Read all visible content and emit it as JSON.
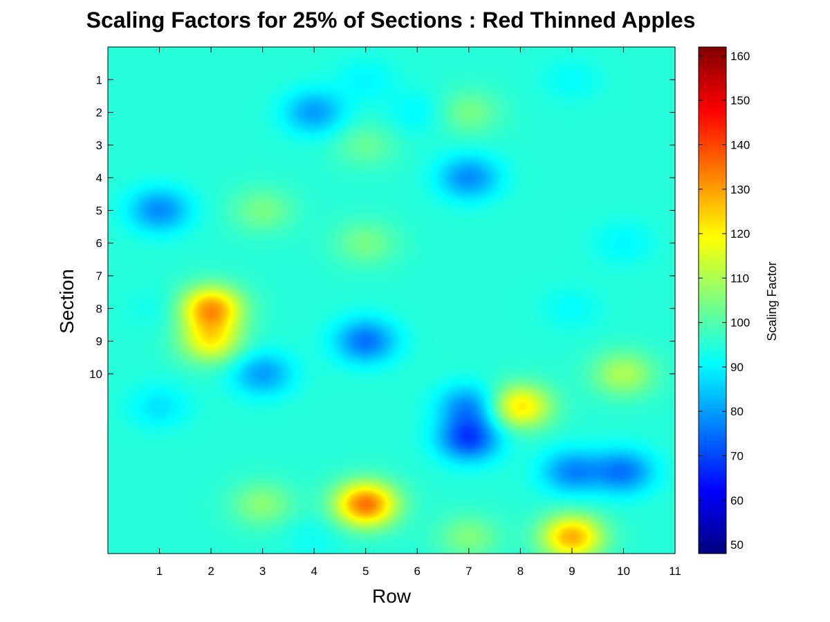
{
  "chart_data": {
    "type": "heatmap",
    "title": "Scaling Factors for 25% of Sections : Red Thinned Apples",
    "xlabel": "Row",
    "ylabel": "Section",
    "colorbar_label": "Scaling Factor",
    "colormap": "jet",
    "xlim": [
      0,
      11
    ],
    "ylim": [
      0,
      15.5
    ],
    "y_reversed": true,
    "x_ticks": [
      1,
      2,
      3,
      4,
      5,
      6,
      7,
      8,
      9,
      10,
      11
    ],
    "y_ticks": [
      1,
      2,
      3,
      4,
      5,
      6,
      7,
      8,
      9,
      10
    ],
    "color_range": [
      48,
      162
    ],
    "colorbar_ticks": [
      50,
      60,
      70,
      80,
      90,
      100,
      110,
      120,
      130,
      140,
      150,
      160
    ],
    "background_value": 95,
    "hotspots": [
      {
        "row": 1,
        "section": 5,
        "value": 78
      },
      {
        "row": 4,
        "section": 2,
        "value": 80
      },
      {
        "row": 5,
        "section": 1,
        "value": 90
      },
      {
        "row": 5,
        "section": 3,
        "value": 102
      },
      {
        "row": 6,
        "section": 2,
        "value": 90
      },
      {
        "row": 7,
        "section": 2,
        "value": 104
      },
      {
        "row": 7,
        "section": 4,
        "value": 78
      },
      {
        "row": 9,
        "section": 1,
        "value": 91
      },
      {
        "row": 3,
        "section": 5,
        "value": 104
      },
      {
        "row": 5,
        "section": 6,
        "value": 104
      },
      {
        "row": 10,
        "section": 6,
        "value": 90
      },
      {
        "row": 1,
        "section": 8,
        "value": 92
      },
      {
        "row": 2,
        "section": 8,
        "value": 130
      },
      {
        "row": 2,
        "section": 9,
        "value": 118
      },
      {
        "row": 5,
        "section": 9,
        "value": 75
      },
      {
        "row": 9,
        "section": 8,
        "value": 91
      },
      {
        "row": 3,
        "section": 10,
        "value": 80
      },
      {
        "row": 10,
        "section": 10,
        "value": 110
      },
      {
        "row": 1,
        "section": 11,
        "value": 88
      },
      {
        "row": 7,
        "section": 11,
        "value": 78
      },
      {
        "row": 8,
        "section": 11,
        "value": 122
      },
      {
        "row": 7,
        "section": 12,
        "value": 70
      },
      {
        "row": 9,
        "section": 13,
        "value": 78
      },
      {
        "row": 10,
        "section": 13,
        "value": 76
      },
      {
        "row": 3,
        "section": 14,
        "value": 106
      },
      {
        "row": 5,
        "section": 14,
        "value": 135
      },
      {
        "row": 4,
        "section": 15,
        "value": 92
      },
      {
        "row": 7,
        "section": 15,
        "value": 105
      },
      {
        "row": 9,
        "section": 15,
        "value": 128
      }
    ]
  }
}
